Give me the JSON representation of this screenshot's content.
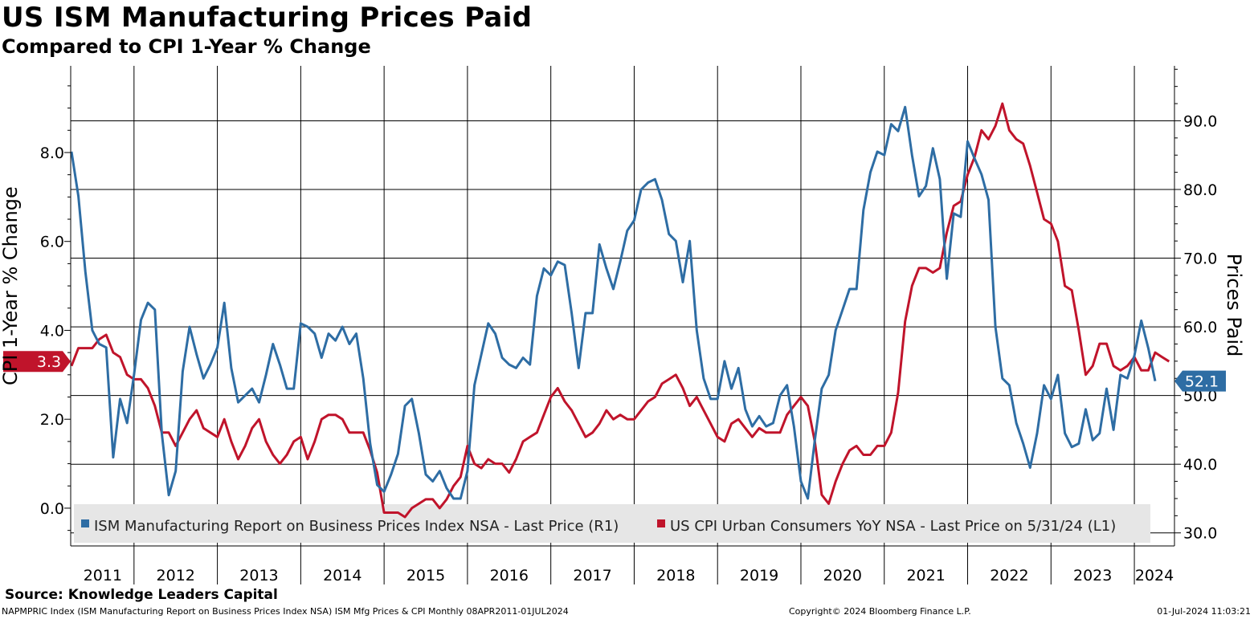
{
  "header": {
    "title": "US ISM Manufacturing Prices Paid",
    "subtitle": "Compared to CPI 1-Year % Change"
  },
  "footer": {
    "source": "Source: Knowledge Leaders Capital",
    "index_info": "NAPMPRIC Index (ISM Manufacturing Report on Business Prices Index NSA) ISM Mfg Prices & CPI  Monthly 08APR2011-01JUL2024",
    "copyright": "Copyright© 2024 Bloomberg Finance L.P.",
    "timestamp": "01-Jul-2024 11:03:21"
  },
  "chart_data": {
    "type": "line",
    "ylabel_left": "CPI 1-Year % Change",
    "ylabel_right": "Prices Paid",
    "left_axis": {
      "range": [
        -0.85,
        9.95
      ],
      "ticks": [
        "0.0",
        "2.0",
        "4.0",
        "6.0",
        "8.0"
      ]
    },
    "right_axis": {
      "range": [
        28.1,
        98.0
      ],
      "ticks": [
        "30.0",
        "40.0",
        "50.0",
        "60.0",
        "70.0",
        "80.0",
        "90.0"
      ]
    },
    "x_labels": [
      "2011",
      "2012",
      "2013",
      "2014",
      "2015",
      "2016",
      "2017",
      "2018",
      "2019",
      "2020",
      "2021",
      "2022",
      "2023",
      "2024"
    ],
    "grid": true,
    "legend_position": "bottom",
    "legend": [
      {
        "label": "ISM Manufacturing Report on Business Prices Index NSA - Last Price (R1)",
        "color": "#2e6da4"
      },
      {
        "label": "US CPI Urban Consumers YoY NSA - Last Price on 5/31/24 (L1)",
        "color": "#c0142b"
      }
    ],
    "last_value_tags": {
      "cpi": "3.3",
      "ism": "52.1"
    },
    "series": [
      {
        "key": "ism",
        "axis": "right",
        "color": "#2e6da4",
        "x_start": "2011-04",
        "values": [
          85.5,
          79.0,
          68.0,
          59.5,
          57.5,
          57.0,
          41.0,
          49.5,
          46.0,
          53.0,
          61.0,
          63.5,
          62.5,
          44.5,
          35.5,
          39.0,
          53.5,
          60.0,
          56.0,
          52.5,
          54.5,
          57.0,
          63.5,
          54.0,
          49.0,
          50.0,
          51.0,
          49.0,
          53.0,
          57.5,
          54.5,
          51.0,
          51.0,
          60.5,
          60.0,
          59.0,
          55.5,
          59.0,
          58.0,
          60.0,
          57.5,
          59.0,
          52.5,
          43.0,
          37.0,
          36.0,
          38.5,
          41.5,
          48.5,
          49.5,
          44.5,
          38.5,
          37.5,
          39.0,
          36.5,
          35.0,
          35.0,
          39.0,
          51.5,
          56.0,
          60.5,
          59.0,
          55.5,
          54.5,
          54.0,
          55.5,
          54.5,
          64.5,
          68.5,
          67.5,
          69.5,
          69.0,
          62.0,
          54.0,
          62.0,
          62.0,
          72.0,
          68.5,
          65.5,
          69.5,
          74.0,
          75.5,
          80.0,
          81.0,
          81.5,
          78.5,
          73.5,
          72.5,
          66.5,
          72.5,
          59.5,
          52.5,
          49.5,
          49.5,
          55.0,
          51.0,
          54.0,
          48.0,
          45.5,
          47.0,
          45.5,
          46.0,
          50.0,
          51.5,
          45.5,
          37.5,
          35.0,
          43.5,
          51.0,
          53.0,
          59.5,
          62.5,
          65.5,
          65.5,
          77.0,
          82.5,
          85.5,
          85.0,
          89.5,
          88.5,
          92.0,
          85.0,
          79.0,
          80.5,
          86.0,
          81.5,
          67.0,
          76.5,
          76.0,
          87.0,
          84.5,
          82.2,
          78.5,
          60.0,
          52.5,
          51.5,
          46.0,
          43.0,
          39.5,
          44.5,
          51.5,
          49.5,
          53.0,
          44.5,
          42.5,
          43.0,
          48.0,
          43.5,
          44.5,
          51.0,
          45.0,
          53.0,
          52.5,
          55.8,
          60.9,
          56.9,
          52.1
        ]
      },
      {
        "key": "cpi",
        "axis": "left",
        "color": "#c0142b",
        "x_start": "2011-04",
        "values": [
          3.2,
          3.6,
          3.6,
          3.6,
          3.8,
          3.9,
          3.5,
          3.4,
          3.0,
          2.9,
          2.9,
          2.7,
          2.3,
          1.7,
          1.7,
          1.4,
          1.7,
          2.0,
          2.2,
          1.8,
          1.7,
          1.6,
          2.0,
          1.5,
          1.1,
          1.4,
          1.8,
          2.0,
          1.5,
          1.2,
          1.0,
          1.2,
          1.5,
          1.6,
          1.1,
          1.5,
          2.0,
          2.1,
          2.1,
          2.0,
          1.7,
          1.7,
          1.7,
          1.3,
          0.8,
          -0.1,
          -0.1,
          -0.1,
          -0.2,
          0.0,
          0.1,
          0.2,
          0.2,
          0.0,
          0.2,
          0.5,
          0.7,
          1.4,
          1.0,
          0.9,
          1.1,
          1.0,
          1.0,
          0.8,
          1.1,
          1.5,
          1.6,
          1.7,
          2.1,
          2.5,
          2.7,
          2.4,
          2.2,
          1.9,
          1.6,
          1.7,
          1.9,
          2.2,
          2.0,
          2.1,
          2.0,
          2.0,
          2.2,
          2.4,
          2.5,
          2.8,
          2.9,
          3.0,
          2.7,
          2.3,
          2.5,
          2.2,
          1.9,
          1.6,
          1.5,
          1.9,
          2.0,
          1.8,
          1.6,
          1.8,
          1.7,
          1.7,
          1.7,
          2.1,
          2.3,
          2.5,
          2.3,
          1.5,
          0.3,
          0.1,
          0.6,
          1.0,
          1.3,
          1.4,
          1.2,
          1.2,
          1.4,
          1.4,
          1.7,
          2.6,
          4.2,
          5.0,
          5.4,
          5.4,
          5.3,
          5.4,
          6.2,
          6.8,
          6.9,
          7.5,
          7.9,
          8.5,
          8.3,
          8.6,
          9.1,
          8.5,
          8.3,
          8.2,
          7.7,
          7.1,
          6.5,
          6.4,
          6.0,
          5.0,
          4.9,
          4.0,
          3.0,
          3.2,
          3.7,
          3.7,
          3.2,
          3.1,
          3.2,
          3.4,
          3.1,
          3.1,
          3.5,
          3.4,
          3.3
        ]
      }
    ]
  }
}
